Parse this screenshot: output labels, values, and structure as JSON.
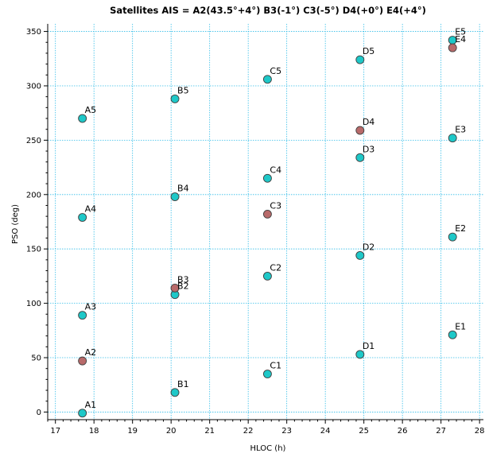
{
  "chart_data": {
    "type": "scatter",
    "title": "Satellites AIS = A2(43.5°+4°) B3(-1°) C3(-5°) D4(+0°) E4(+4°)",
    "xlabel": "HLOC (h)",
    "ylabel": "PSO (deg)",
    "xlim": [
      16.8,
      28.1
    ],
    "ylim": [
      -7,
      357
    ],
    "xticks": [
      17,
      18,
      19,
      20,
      21,
      22,
      23,
      24,
      25,
      26,
      27,
      28
    ],
    "yticks": [
      0,
      50,
      100,
      150,
      200,
      250,
      300,
      350
    ],
    "grid": true,
    "colors": {
      "normal": "#1ec8c8",
      "highlight": "#b86a6a",
      "grid": "#33bde8"
    },
    "points": [
      {
        "label": "A1",
        "x": 17.7,
        "y": -1,
        "highlight": false
      },
      {
        "label": "A2",
        "x": 17.7,
        "y": 47,
        "highlight": true
      },
      {
        "label": "A3",
        "x": 17.7,
        "y": 89,
        "highlight": false
      },
      {
        "label": "A4",
        "x": 17.7,
        "y": 179,
        "highlight": false
      },
      {
        "label": "A5",
        "x": 17.7,
        "y": 270,
        "highlight": false
      },
      {
        "label": "B1",
        "x": 20.1,
        "y": 18,
        "highlight": false
      },
      {
        "label": "B2",
        "x": 20.1,
        "y": 108,
        "highlight": false
      },
      {
        "label": "B3",
        "x": 20.1,
        "y": 114,
        "highlight": true
      },
      {
        "label": "B4",
        "x": 20.1,
        "y": 198,
        "highlight": false
      },
      {
        "label": "B5",
        "x": 20.1,
        "y": 288,
        "highlight": false
      },
      {
        "label": "C1",
        "x": 22.5,
        "y": 35,
        "highlight": false
      },
      {
        "label": "C2",
        "x": 22.5,
        "y": 125,
        "highlight": false
      },
      {
        "label": "C3",
        "x": 22.5,
        "y": 182,
        "highlight": true
      },
      {
        "label": "C4",
        "x": 22.5,
        "y": 215,
        "highlight": false
      },
      {
        "label": "C5",
        "x": 22.5,
        "y": 306,
        "highlight": false
      },
      {
        "label": "D1",
        "x": 24.9,
        "y": 53,
        "highlight": false
      },
      {
        "label": "D2",
        "x": 24.9,
        "y": 144,
        "highlight": false
      },
      {
        "label": "D3",
        "x": 24.9,
        "y": 234,
        "highlight": false
      },
      {
        "label": "D4",
        "x": 24.9,
        "y": 259,
        "highlight": true
      },
      {
        "label": "D5",
        "x": 24.9,
        "y": 324,
        "highlight": false
      },
      {
        "label": "E1",
        "x": 27.3,
        "y": 71,
        "highlight": false
      },
      {
        "label": "E2",
        "x": 27.3,
        "y": 161,
        "highlight": false
      },
      {
        "label": "E3",
        "x": 27.3,
        "y": 252,
        "highlight": false
      },
      {
        "label": "E4",
        "x": 27.3,
        "y": 335,
        "highlight": true
      },
      {
        "label": "E5",
        "x": 27.3,
        "y": 342,
        "highlight": false
      }
    ]
  }
}
